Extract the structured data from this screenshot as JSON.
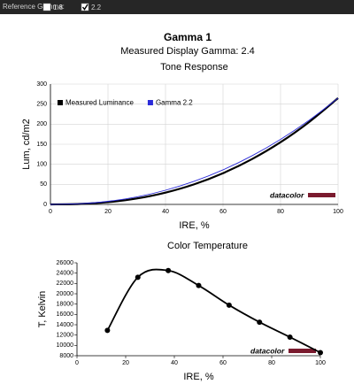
{
  "header": {
    "label": "Reference Gamma:",
    "options": [
      {
        "label": "1.8",
        "checked": false
      },
      {
        "label": "2.2",
        "checked": true
      }
    ],
    "title": "Gamma 1",
    "subtitle": "Measured Display Gamma: 2.4"
  },
  "chart_data": [
    {
      "type": "line",
      "title": "Tone Response",
      "x_label": "IRE, %",
      "y_label": "Lum, cd/m2",
      "watermark": "datacolor",
      "x": [
        0,
        10,
        20,
        30,
        40,
        50,
        60,
        70,
        80,
        90,
        100
      ],
      "series": [
        {
          "name": "Measured Luminance",
          "color": "#000000",
          "width": 2.2,
          "values": [
            0,
            1.1,
            5.6,
            14.7,
            29.4,
            50.2,
            77.8,
            112.6,
            155,
            205.8,
            265
          ]
        },
        {
          "name": "Gamma 2.2",
          "color": "#2b2bd9",
          "width": 0.9,
          "values": [
            0,
            1.7,
            7.7,
            18.7,
            35.3,
            57.7,
            86.2,
            120.9,
            162.2,
            210.2,
            265
          ]
        }
      ],
      "xlim": [
        0,
        100
      ],
      "xticks": [
        0,
        20,
        40,
        60,
        80,
        100
      ],
      "ylim": [
        0,
        300
      ],
      "yticks": [
        0,
        50,
        100,
        150,
        200,
        250,
        300
      ],
      "grid": true,
      "legend": "upper left"
    },
    {
      "type": "line",
      "title": "Color Temperature",
      "x_label": "IRE, %",
      "y_label": "T, Kelvin",
      "watermark": "datacolor",
      "x": [
        12.5,
        25,
        37.5,
        50,
        62.5,
        75,
        87.5,
        100
      ],
      "values": [
        12900,
        23200,
        24500,
        21600,
        17800,
        14500,
        11600,
        8600
      ],
      "color": "#000000",
      "markers": true,
      "xlim": [
        0,
        100
      ],
      "xticks": [
        0,
        20,
        40,
        60,
        80,
        100
      ],
      "ylim": [
        8000,
        26000
      ],
      "yticks": [
        8000,
        10000,
        12000,
        14000,
        16000,
        18000,
        20000,
        22000,
        24000,
        26000
      ],
      "grid": false
    }
  ]
}
